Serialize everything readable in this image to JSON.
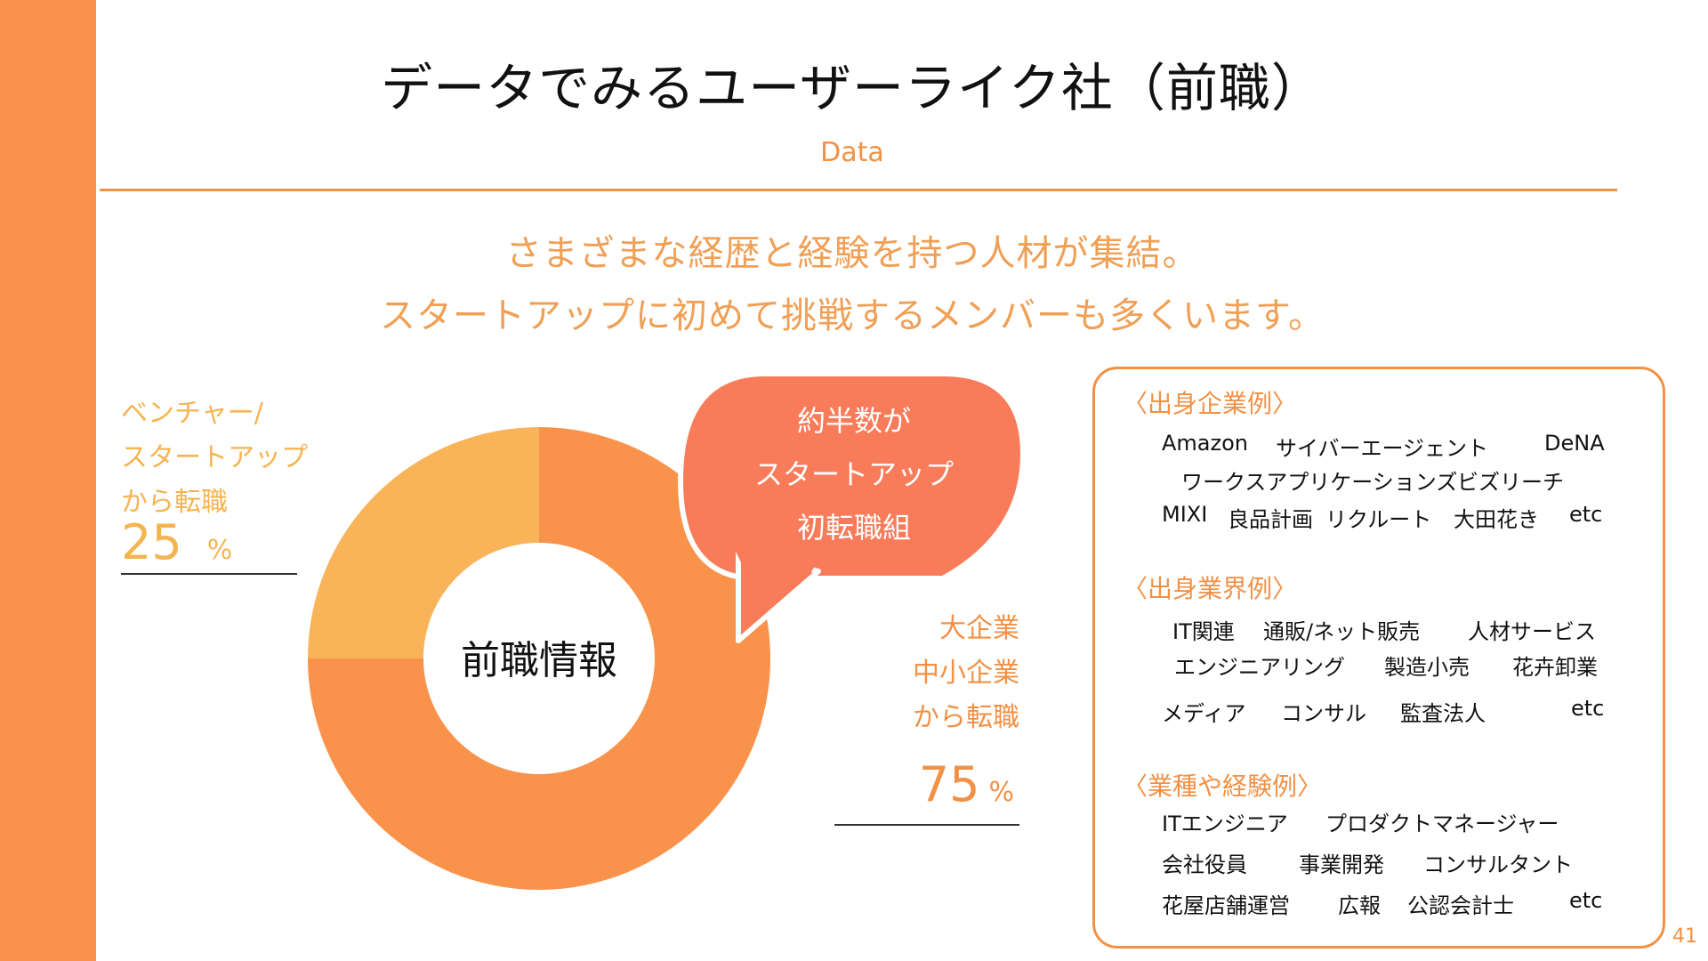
{
  "slide": {
    "title": "データでみるユーザーライク社（前職）",
    "subtitle": "Data",
    "lead_lines": [
      "さまざまな経歴と経験を持つ人材が集結。",
      "スタートアップに初めて挑戦するメンバーも多くいます。"
    ],
    "page_number": "41"
  },
  "colors": {
    "accent": "#F29146",
    "bar": "#F9924B",
    "venture": "#F9B45A",
    "enterprise": "#F9924B",
    "bubble": "#F97C5A"
  },
  "left_label": {
    "lines": [
      "ベンチャー/",
      "スタートアップ",
      "から転職"
    ],
    "value": "25",
    "unit": "%"
  },
  "right_label": {
    "lines": [
      "大企業",
      "中小企業",
      "から転職"
    ],
    "value": "75",
    "unit": "%"
  },
  "bubble_lines": [
    "約半数が",
    "スタートアップ",
    "初転職組"
  ],
  "chart_data": {
    "type": "pie",
    "variant": "donut",
    "title": "前職情報",
    "categories": [
      "大企業・中小企業から転職",
      "ベンチャー/スタートアップから転職"
    ],
    "values": [
      75,
      25
    ],
    "colors": [
      "#F9924B",
      "#F9B45A"
    ],
    "unit": "%"
  },
  "panel": {
    "sections": [
      {
        "heading": "〈出身企業例〉",
        "rows": [
          [
            "Amazon",
            "サイバーエージェント",
            "DeNA"
          ],
          [
            "ワークスアプリケーションズ",
            "ビズリーチ"
          ],
          [
            "MIXI",
            "良品計画",
            "リクルート",
            "大田花き",
            "etc"
          ]
        ]
      },
      {
        "heading": "〈出身業界例〉",
        "rows": [
          [
            "IT関連",
            "通販/ネット販売",
            "人材サービス"
          ],
          [
            "エンジニアリング",
            "製造小売",
            "花卉卸業"
          ],
          [
            "メディア",
            "コンサル",
            "監査法人",
            "etc"
          ]
        ]
      },
      {
        "heading": "〈業種や経験例〉",
        "rows": [
          [
            "ITエンジニア",
            "プロダクトマネージャー"
          ],
          [
            "会社役員",
            "事業開発",
            "コンサルタント"
          ],
          [
            "花屋店舗運営",
            "広報",
            "公認会計士",
            "etc"
          ]
        ]
      }
    ]
  }
}
